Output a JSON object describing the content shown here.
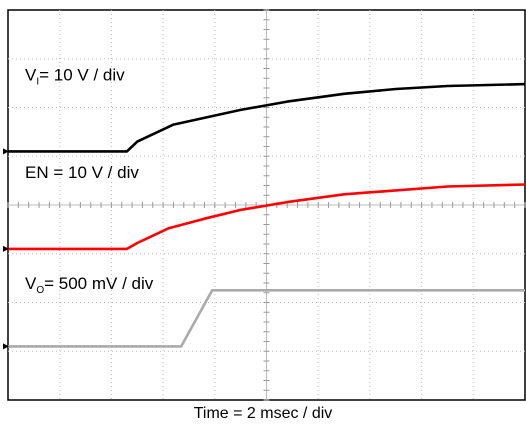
{
  "chart_data": {
    "type": "line",
    "xlabel": "Time = 2 msec / div",
    "grid": true,
    "x_divisions": 10,
    "y_divisions": 8,
    "x_unit_per_div": "2 msec",
    "series": [
      {
        "name_main": "V",
        "name_sub": "I",
        "name_rest": "= 10 V / div",
        "color": "#000000",
        "baseline_marker_div": 2.9,
        "points_div": [
          [
            0,
            2.9
          ],
          [
            2.3,
            2.9
          ],
          [
            2.5,
            2.7
          ],
          [
            3.2,
            2.35
          ],
          [
            4.5,
            2.05
          ],
          [
            5.4,
            1.88
          ],
          [
            6.5,
            1.72
          ],
          [
            7.5,
            1.62
          ],
          [
            8.5,
            1.56
          ],
          [
            10,
            1.52
          ]
        ]
      },
      {
        "name_main": "EN = 10 V / div",
        "name_sub": "",
        "name_rest": "",
        "color": "#ff0000",
        "baseline_marker_div": 4.9,
        "points_div": [
          [
            0,
            4.9
          ],
          [
            2.3,
            4.9
          ],
          [
            2.5,
            4.78
          ],
          [
            3.1,
            4.48
          ],
          [
            3.8,
            4.28
          ],
          [
            4.5,
            4.1
          ],
          [
            5.4,
            3.94
          ],
          [
            6.5,
            3.78
          ],
          [
            7.5,
            3.7
          ],
          [
            8.5,
            3.62
          ],
          [
            10,
            3.58
          ]
        ]
      },
      {
        "name_main": "V",
        "name_sub": "O",
        "name_rest": "= 500 mV / div",
        "color": "#aaaaaa",
        "baseline_marker_div": 6.9,
        "points_div": [
          [
            0,
            6.9
          ],
          [
            3.35,
            6.9
          ],
          [
            3.95,
            5.75
          ],
          [
            10,
            5.75
          ]
        ]
      }
    ]
  }
}
